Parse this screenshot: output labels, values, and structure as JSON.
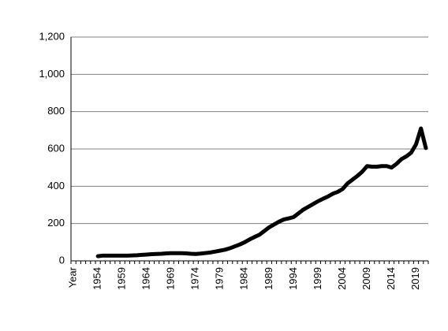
{
  "chart_data": {
    "type": "line",
    "categories": [
      "Year",
      null,
      null,
      null,
      null,
      "1954",
      null,
      null,
      null,
      null,
      "1959",
      null,
      null,
      null,
      null,
      "1964",
      null,
      null,
      null,
      null,
      "1969",
      null,
      null,
      null,
      null,
      "1974",
      null,
      null,
      null,
      null,
      "1979",
      null,
      null,
      null,
      null,
      "1984",
      null,
      null,
      null,
      null,
      "1989",
      null,
      null,
      null,
      null,
      "1994",
      null,
      null,
      null,
      null,
      "1999",
      null,
      null,
      null,
      null,
      "2004",
      null,
      null,
      null,
      null,
      "2009",
      null,
      null,
      null,
      null,
      "2014",
      null,
      null,
      null,
      null,
      "2019",
      null,
      null
    ],
    "series": [
      {
        "color": "#000000",
        "values": [
          null,
          null,
          null,
          null,
          null,
          25,
          28,
          28,
          28,
          28,
          28,
          28,
          29,
          30,
          32,
          34,
          36,
          37,
          38,
          40,
          41,
          41,
          41,
          40,
          38,
          37,
          39,
          42,
          45,
          50,
          55,
          60,
          68,
          78,
          88,
          100,
          115,
          128,
          140,
          160,
          180,
          195,
          210,
          222,
          228,
          235,
          255,
          275,
          290,
          305,
          320,
          333,
          345,
          360,
          370,
          385,
          415,
          435,
          455,
          478,
          508,
          505,
          505,
          508,
          508,
          500,
          520,
          545,
          560,
          580,
          625,
          710,
          605
        ]
      }
    ],
    "ylim": [
      0,
      1200
    ],
    "yticks": [
      0,
      200,
      400,
      600,
      800,
      {
        "value": 1000,
        "label": "1,000"
      },
      {
        "value": 1200,
        "label": "1,200"
      }
    ],
    "grid": true
  }
}
